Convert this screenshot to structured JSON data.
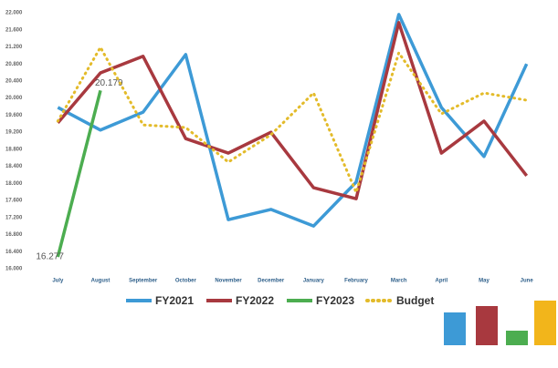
{
  "chart_data": {
    "type": "line",
    "categories": [
      "July",
      "August",
      "September",
      "October",
      "November",
      "December",
      "January",
      "February",
      "March",
      "April",
      "May",
      "June"
    ],
    "series": [
      {
        "name": "FY2021",
        "color": "#3d9ad6",
        "dash": false,
        "values": [
          19780,
          19250,
          19670,
          21020,
          17150,
          17390,
          17000,
          18030,
          21960,
          19780,
          18630,
          20800
        ]
      },
      {
        "name": "FY2022",
        "color": "#a8393f",
        "dash": false,
        "values": [
          19420,
          20590,
          20980,
          19050,
          18710,
          19200,
          17900,
          17640,
          21770,
          18710,
          19460,
          18180
        ]
      },
      {
        "name": "FY2023",
        "color": "#4cad50",
        "dash": false,
        "values": [
          16277,
          20179,
          null,
          null,
          null,
          null,
          null,
          null,
          null,
          null,
          null,
          null
        ],
        "value_labels": [
          "16.277",
          "20.179",
          null,
          null,
          null,
          null,
          null,
          null,
          null,
          null,
          null,
          null
        ]
      },
      {
        "name": "Budget",
        "color": "#e3bb2a",
        "dash": true,
        "values": [
          19460,
          21190,
          19370,
          19310,
          18500,
          19140,
          20120,
          17790,
          21060,
          19630,
          20120,
          19950
        ]
      }
    ],
    "ylim": [
      16000,
      22000
    ],
    "yticks": [
      {
        "value": 16000,
        "label": "16.000"
      },
      {
        "value": 16400,
        "label": "16.400"
      },
      {
        "value": 16800,
        "label": "16.800"
      },
      {
        "value": 17200,
        "label": "17.200"
      },
      {
        "value": 17600,
        "label": "17.600"
      },
      {
        "value": 18000,
        "label": "18.000"
      },
      {
        "value": 18400,
        "label": "18.400"
      },
      {
        "value": 18800,
        "label": "18.800"
      },
      {
        "value": 19200,
        "label": "19.200"
      },
      {
        "value": 19600,
        "label": "19.600"
      },
      {
        "value": 20000,
        "label": "20.000"
      },
      {
        "value": 20400,
        "label": "20.400"
      },
      {
        "value": 20800,
        "label": "20.800"
      },
      {
        "value": 21200,
        "label": "21.200"
      },
      {
        "value": 21600,
        "label": "21.600"
      },
      {
        "value": 22000,
        "label": "22.000"
      }
    ],
    "grid": false
  }
}
